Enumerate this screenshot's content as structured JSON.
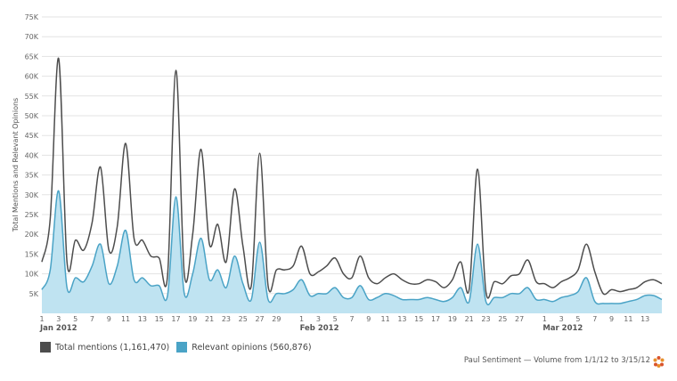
{
  "chart_data": {
    "type": "area",
    "ylabel": "Total Mentions and Relevant Opinions",
    "ylim": [
      0,
      75000
    ],
    "yticks": [
      "5K",
      "10K",
      "15K",
      "20K",
      "25K",
      "30K",
      "35K",
      "40K",
      "45K",
      "50K",
      "55K",
      "60K",
      "65K",
      "70K",
      "75K"
    ],
    "xticks": [
      "1",
      "3",
      "5",
      "7",
      "9",
      "11",
      "13",
      "15",
      "17",
      "19",
      "21",
      "23",
      "25",
      "27",
      "29",
      "1",
      "3",
      "5",
      "7",
      "9",
      "11",
      "13",
      "15",
      "17",
      "19",
      "21",
      "23",
      "25",
      "27",
      "1",
      "3",
      "5",
      "7",
      "9",
      "11",
      "13"
    ],
    "month_labels": [
      "Jan 2012",
      "Feb 2012",
      "Mar 2012"
    ],
    "x_start": "2012-01-01",
    "x_end": "2012-03-15",
    "grid": true,
    "legend_position": "bottom-left",
    "series": [
      {
        "name": "Total mentions (1,161,470)",
        "color": "#4d4d4d",
        "values": [
          13,
          24,
          64.5,
          13,
          18.5,
          16,
          23,
          37,
          16,
          22,
          43,
          19,
          18.5,
          14.5,
          14,
          9.5,
          61.5,
          10,
          20,
          41.5,
          17.5,
          22.5,
          13,
          31.5,
          17,
          7,
          40.5,
          7,
          11,
          11,
          12,
          17,
          10,
          10.5,
          12,
          14,
          10,
          9,
          14.5,
          9,
          7.5,
          9,
          10,
          8.5,
          7.5,
          7.5,
          8.5,
          8,
          6.5,
          8.5,
          13,
          6,
          36.5,
          5.5,
          8,
          7.5,
          9.5,
          10,
          13.5,
          8,
          7.5,
          6.5,
          8,
          9,
          11,
          17.5,
          10.5,
          5,
          6,
          5.5,
          6,
          6.5,
          8,
          8.5,
          7.5
        ]
      },
      {
        "name": "Relevant opinions (560,876)",
        "color": "#4aa3c6",
        "values": [
          6,
          11,
          31,
          6.5,
          9,
          8,
          12,
          17.5,
          7.5,
          12,
          21,
          8.5,
          9,
          7,
          7,
          4.5,
          29.5,
          5,
          10,
          19,
          8.5,
          11,
          6.5,
          14.5,
          7.5,
          3.5,
          18,
          3.5,
          5,
          5,
          6,
          8.5,
          4.5,
          5,
          5,
          6.5,
          4,
          4,
          7,
          3.5,
          4,
          5,
          4.5,
          3.5,
          3.5,
          3.5,
          4,
          3.5,
          3,
          4,
          6.5,
          3,
          17.5,
          3,
          4,
          4,
          5,
          5,
          6.5,
          3.5,
          3.5,
          3,
          4,
          4.5,
          5.5,
          9,
          3,
          2.5,
          2.5,
          2.5,
          3,
          3.5,
          4.5,
          4.5,
          3.5
        ]
      }
    ],
    "value_unit": "thousands"
  },
  "footer": "Paul Sentiment — Volume from 1/1/12 to 3/15/12"
}
